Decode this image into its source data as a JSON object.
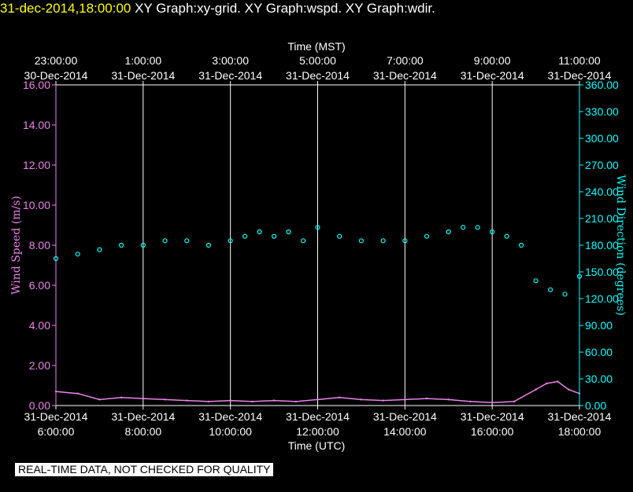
{
  "header": {
    "date_label": "31-dec-2014,18:00:00",
    "graphs_label": "  XY Graph:xy-grid.  XY Graph:wspd.  XY Graph:wdir."
  },
  "notice": "REAL-TIME DATA, NOT CHECKED FOR QUALITY",
  "colors": {
    "background": "#000000",
    "frame": "#ffffff",
    "grid": "#ffffff",
    "wind_speed": "#ee82ee",
    "wind_direction": "#00ffff",
    "title": "#ffff00"
  },
  "chart_data": {
    "type": "scatter",
    "grid": true,
    "x_top": {
      "label": "Time (MST)",
      "ticks": [
        {
          "time": "23:00:00",
          "date": "30-Dec-2014"
        },
        {
          "time": "1:00:00",
          "date": "31-Dec-2014"
        },
        {
          "time": "3:00:00",
          "date": "31-Dec-2014"
        },
        {
          "time": "5:00:00",
          "date": "31-Dec-2014"
        },
        {
          "time": "7:00:00",
          "date": "31-Dec-2014"
        },
        {
          "time": "9:00:00",
          "date": "31-Dec-2014"
        },
        {
          "time": "11:00:00",
          "date": "31-Dec-2014"
        }
      ]
    },
    "x_bottom": {
      "label": "Time (UTC)",
      "range": [
        "2014-12-31T06:00:00Z",
        "2014-12-31T18:00:00Z"
      ],
      "ticks": [
        {
          "date": "31-Dec-2014",
          "time": "6:00:00"
        },
        {
          "date": "31-Dec-2014",
          "time": "8:00:00"
        },
        {
          "date": "31-Dec-2014",
          "time": "10:00:00"
        },
        {
          "date": "31-Dec-2014",
          "time": "12:00:00"
        },
        {
          "date": "31-Dec-2014",
          "time": "14:00:00"
        },
        {
          "date": "31-Dec-2014",
          "time": "16:00:00"
        },
        {
          "date": "31-Dec-2014",
          "time": "18:00:00"
        }
      ]
    },
    "y_left": {
      "label": "Wind Speed (m/s)",
      "range": [
        0,
        16
      ],
      "ticks": [
        "0.00",
        "2.00",
        "4.00",
        "6.00",
        "8.00",
        "10.00",
        "12.00",
        "14.00",
        "16.00"
      ]
    },
    "y_right": {
      "label": "Wind Direction (degrees)",
      "range": [
        0,
        360
      ],
      "ticks": [
        "0.00",
        "30.00",
        "60.00",
        "90.00",
        "120.00",
        "150.00",
        "180.00",
        "210.00",
        "240.00",
        "270.00",
        "300.00",
        "330.00",
        "360.00"
      ]
    },
    "series": [
      {
        "key": "wspd",
        "axis": "left",
        "marker": "line",
        "points": [
          [
            "06:00",
            0.7
          ],
          [
            "06:30",
            0.6
          ],
          [
            "07:00",
            0.3
          ],
          [
            "07:30",
            0.4
          ],
          [
            "08:00",
            0.35
          ],
          [
            "08:30",
            0.3
          ],
          [
            "09:00",
            0.25
          ],
          [
            "09:30",
            0.2
          ],
          [
            "10:00",
            0.25
          ],
          [
            "10:30",
            0.2
          ],
          [
            "11:00",
            0.25
          ],
          [
            "11:30",
            0.2
          ],
          [
            "12:00",
            0.3
          ],
          [
            "12:30",
            0.4
          ],
          [
            "13:00",
            0.3
          ],
          [
            "13:30",
            0.25
          ],
          [
            "14:00",
            0.3
          ],
          [
            "14:30",
            0.35
          ],
          [
            "15:00",
            0.3
          ],
          [
            "15:30",
            0.2
          ],
          [
            "16:00",
            0.15
          ],
          [
            "16:30",
            0.2
          ],
          [
            "17:00",
            0.8
          ],
          [
            "17:15",
            1.1
          ],
          [
            "17:30",
            1.2
          ],
          [
            "17:45",
            0.8
          ],
          [
            "18:00",
            0.6
          ]
        ]
      },
      {
        "key": "wdir",
        "axis": "right",
        "marker": "circle",
        "points": [
          [
            "06:00",
            165
          ],
          [
            "06:30",
            170
          ],
          [
            "07:00",
            175
          ],
          [
            "07:30",
            180
          ],
          [
            "08:00",
            180
          ],
          [
            "08:30",
            185
          ],
          [
            "09:00",
            185
          ],
          [
            "09:30",
            180
          ],
          [
            "10:00",
            185
          ],
          [
            "10:20",
            190
          ],
          [
            "10:40",
            195
          ],
          [
            "11:00",
            190
          ],
          [
            "11:20",
            195
          ],
          [
            "11:40",
            185
          ],
          [
            "12:00",
            200
          ],
          [
            "12:30",
            190
          ],
          [
            "13:00",
            185
          ],
          [
            "13:30",
            185
          ],
          [
            "14:00",
            185
          ],
          [
            "14:30",
            190
          ],
          [
            "15:00",
            195
          ],
          [
            "15:20",
            200
          ],
          [
            "15:40",
            200
          ],
          [
            "16:00",
            195
          ],
          [
            "16:20",
            190
          ],
          [
            "16:40",
            180
          ],
          [
            "17:00",
            140
          ],
          [
            "17:20",
            130
          ],
          [
            "17:40",
            125
          ],
          [
            "18:00",
            145
          ]
        ]
      }
    ]
  }
}
